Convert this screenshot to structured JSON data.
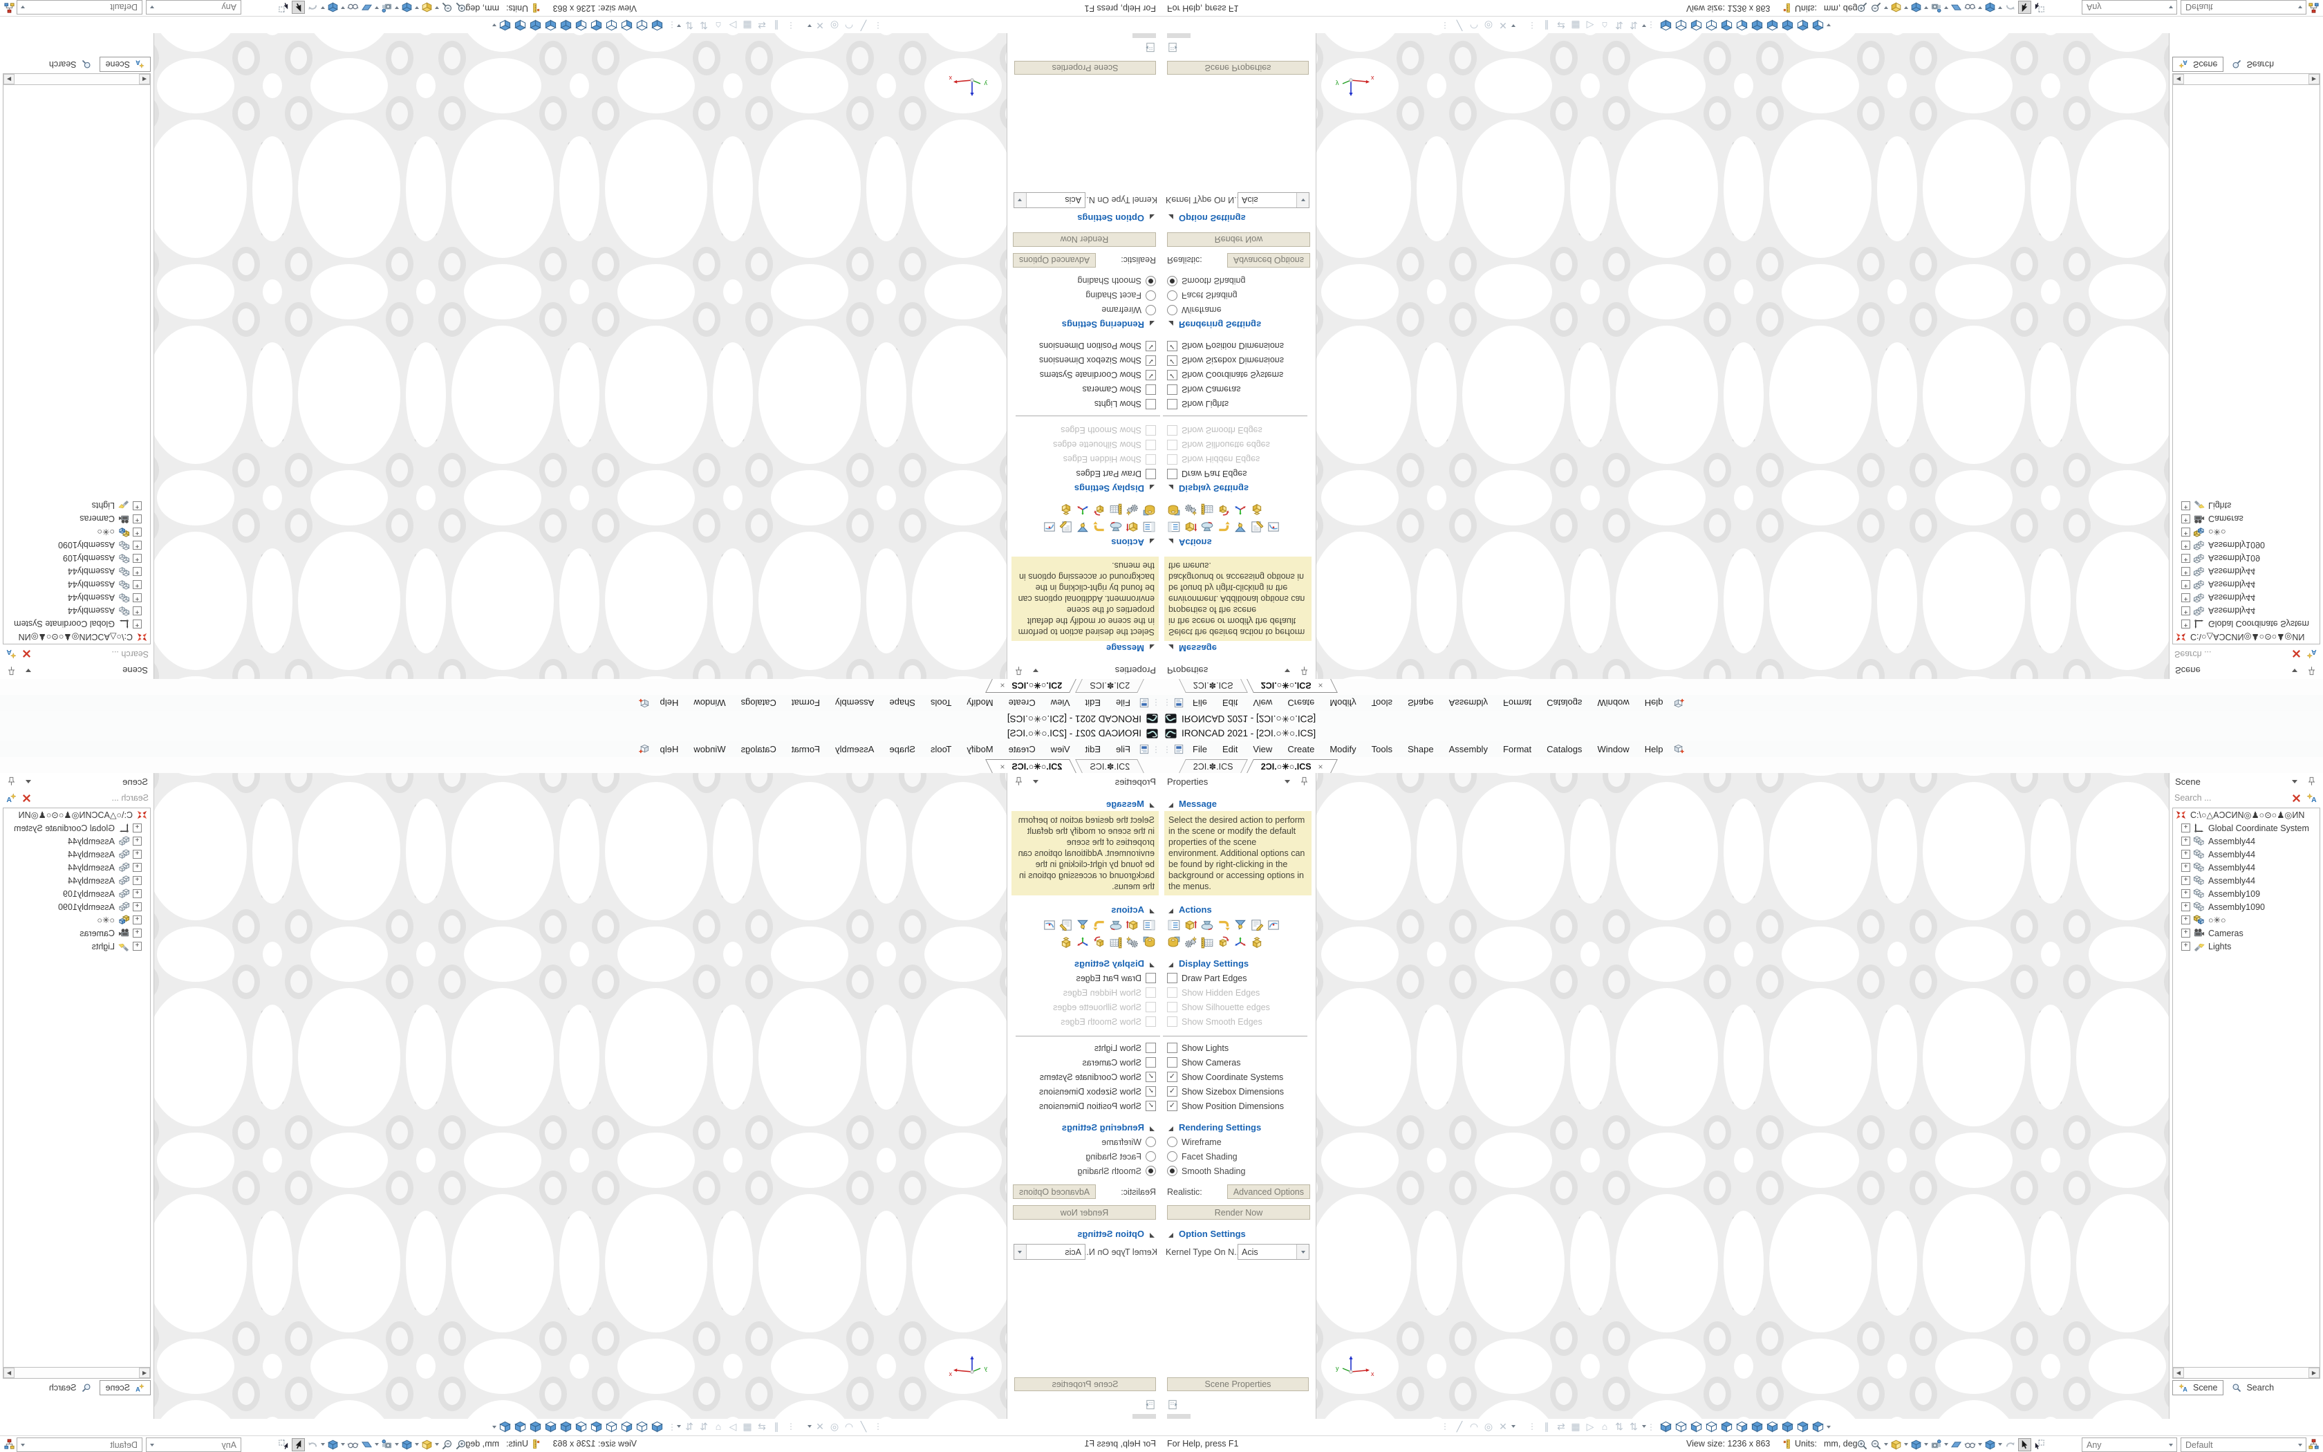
{
  "window": {
    "title": "IRONCAD 2021 - [2ƆI.○✳○.ICS]",
    "app_icon": "ironcad-logo-icon"
  },
  "menu": {
    "items": [
      "File",
      "Edit",
      "View",
      "Create",
      "Modify",
      "Tools",
      "Shape",
      "Assembly",
      "Format",
      "Catalogs",
      "Window",
      "Help"
    ],
    "trailing_icon": "insert-cube-icon"
  },
  "doc_tabs": {
    "tabs": [
      {
        "label": "2ƆI.✽.ICS",
        "active": false
      },
      {
        "label": "2ƆI.○✳○.ICS",
        "active": true
      }
    ],
    "close_glyph": "×"
  },
  "properties_panel": {
    "title": "Properties",
    "message": {
      "title": "Message",
      "text": "Select the desired action to perform in the scene or modify the default properties of the scene environment. Additional options can be found by right-clicking in the background or accessing options in the menus."
    },
    "actions": {
      "title": "Actions",
      "icons_row1": [
        "scene-browser-icon",
        "new-part-icon",
        "turntable-icon",
        "reorient-arrow-icon",
        "render-funnel-icon",
        "edit-sheet-icon",
        "graph-icon"
      ],
      "icons_row2": [
        "washer-part-icon",
        "gears-icon",
        "dimension-table-icon",
        "copy-parts-icon",
        "triad-icon",
        "gold-parts-icon"
      ]
    },
    "display": {
      "title": "Display Settings",
      "group1": [
        {
          "label": "Draw Part Edges",
          "checked": false,
          "enabled": true
        },
        {
          "label": "Show Hidden Edges",
          "checked": false,
          "enabled": false
        },
        {
          "label": "Show Silhouette edges",
          "checked": false,
          "enabled": false
        },
        {
          "label": "Show Smooth Edges",
          "checked": false,
          "enabled": false
        }
      ],
      "group2": [
        {
          "label": "Show Lights",
          "checked": false,
          "enabled": true
        },
        {
          "label": "Show Cameras",
          "checked": false,
          "enabled": true
        },
        {
          "label": "Show Coordinate Systems",
          "checked": true,
          "enabled": true
        },
        {
          "label": "Show Sizebox Dimensions",
          "checked": true,
          "enabled": true
        },
        {
          "label": "Show Position Dimensions",
          "checked": true,
          "enabled": true
        }
      ]
    },
    "rendering": {
      "title": "Rendering Settings",
      "radios": [
        {
          "label": "Wireframe",
          "selected": false
        },
        {
          "label": "Facet Shading",
          "selected": false
        },
        {
          "label": "Smooth Shading",
          "selected": true
        }
      ],
      "realistic_label": "Realistic:",
      "advanced_button": "Advanced Options",
      "render_button": "Render Now"
    },
    "options": {
      "title": "Option Settings",
      "kernel_label": "Kernel Type On N...",
      "kernel_value": "Acis"
    },
    "scene_properties_button": "Scene Properties"
  },
  "scene_panel": {
    "title": "Scene",
    "search_placeholder": "Search ...",
    "search_icons": [
      "clear-search-icon",
      "highlight-filter-icon"
    ],
    "tree": [
      {
        "label": "C:\\○△AƆCИN◎♟○⊙○♟◎ИN",
        "icon": "scene-root-icon",
        "expand": false
      },
      {
        "label": "Global Coordinate System",
        "icon": "axis-icon",
        "expand": true
      },
      {
        "label": "Assembly44",
        "icon": "assembly-icon",
        "expand": true
      },
      {
        "label": "Assembly44",
        "icon": "assembly-icon",
        "expand": true
      },
      {
        "label": "Assembly44",
        "icon": "assembly-icon",
        "expand": true
      },
      {
        "label": "Assembly44",
        "icon": "assembly-icon",
        "expand": true
      },
      {
        "label": "Assembly109",
        "icon": "assembly-icon",
        "expand": true
      },
      {
        "label": "Assembly1090",
        "icon": "assembly-icon",
        "expand": true
      },
      {
        "label": "○✳○",
        "icon": "assembly-color-icon",
        "expand": true
      },
      {
        "label": "Cameras",
        "icon": "camera-icon",
        "expand": true
      },
      {
        "label": "Lights",
        "icon": "light-icon",
        "expand": true
      }
    ],
    "tabs": [
      {
        "label": "Scene",
        "icon": "highlight-filter-icon",
        "active": true
      },
      {
        "label": "Search",
        "icon": "magnifier-icon",
        "active": false
      }
    ],
    "scroll_left": "◀",
    "scroll_right": "▶"
  },
  "viewport": {
    "triad": {
      "x_label": "x",
      "y_label": "y"
    }
  },
  "bottom_toolbar": {
    "group1": [
      "line-icon",
      "arc-icon",
      "circle-icon",
      "delete-icon"
    ],
    "group2": [
      "parallel-icon",
      "swap-icon",
      "grid-icon",
      "flag-icon",
      "roof-icon",
      "updown-icon",
      "updown2-icon"
    ],
    "view_cubes": [
      "cube-1",
      "cube-2",
      "cube-3",
      "cube-4",
      "cube-5",
      "cube-6",
      "cube-7",
      "cube-8",
      "cube-9",
      "cube-10",
      "cube-11"
    ]
  },
  "statusbar": {
    "help_text": "For Help, press F1",
    "view_size": "View size: 1236 x  863",
    "ruler_icon": "ruler-icon",
    "units_label": "Units:",
    "units_value": "mm, deg",
    "icons": [
      "zoom-in-icon",
      "zoom-out-icon",
      "dd",
      "cube-yellow-icon",
      "dd",
      "cube-blue-icon",
      "dd",
      "camera-save-icon",
      "dd",
      "prism-icon",
      "glasses-icon",
      "dd",
      "cube-blue-icon",
      "dd",
      "undo-icon",
      "cursor-pressed-icon",
      "cursor-box-icon"
    ],
    "any_filter": "Any",
    "render_style": "Default",
    "trailing_icon": "hierarchy-icon"
  },
  "colors": {
    "section_header_blue": "#1a64b4",
    "message_bg": "#f6f0c8",
    "button_face": "#eae6d8",
    "cube_blue": "#5b9bd5",
    "model_gray": "#ededed"
  }
}
